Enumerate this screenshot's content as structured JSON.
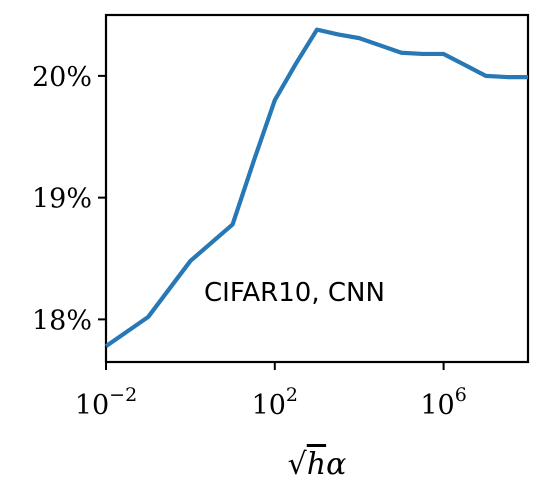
{
  "chart_data": {
    "type": "line",
    "title": "",
    "xlabel": "√hα",
    "xlabel_parts": {
      "radical": "√",
      "h": "h",
      "alpha": "α"
    },
    "ylabel": "",
    "x_scale": "log",
    "xlim": [
      0.01,
      100000000
    ],
    "ylim": [
      17.65,
      20.5
    ],
    "grid": false,
    "annotation": "CIFAR10, CNN",
    "x_ticks": [
      {
        "value": 0.01,
        "base": "10",
        "exp": "−2"
      },
      {
        "value": 100,
        "base": "10",
        "exp": "2"
      },
      {
        "value": 1000000,
        "base": "10",
        "exp": "6"
      }
    ],
    "y_ticks": [
      {
        "value": 18,
        "label": "18%"
      },
      {
        "value": 19,
        "label": "19%"
      },
      {
        "value": 20,
        "label": "20%"
      }
    ],
    "series": [
      {
        "color": "#2878b5",
        "x": [
          0.01,
          0.0316,
          0.1,
          0.316,
          1,
          3.16,
          10,
          31.6,
          100,
          316,
          1000,
          3160,
          10000,
          31600,
          100000,
          316000,
          1000000,
          3160000,
          10000000,
          31600000,
          100000000
        ],
        "y": [
          17.78,
          17.9,
          18.02,
          18.25,
          18.48,
          18.63,
          18.78,
          19.3,
          19.8,
          20.1,
          20.38,
          20.34,
          20.31,
          20.25,
          20.19,
          20.18,
          20.18,
          20.09,
          20.0,
          19.99,
          19.99
        ]
      }
    ]
  }
}
